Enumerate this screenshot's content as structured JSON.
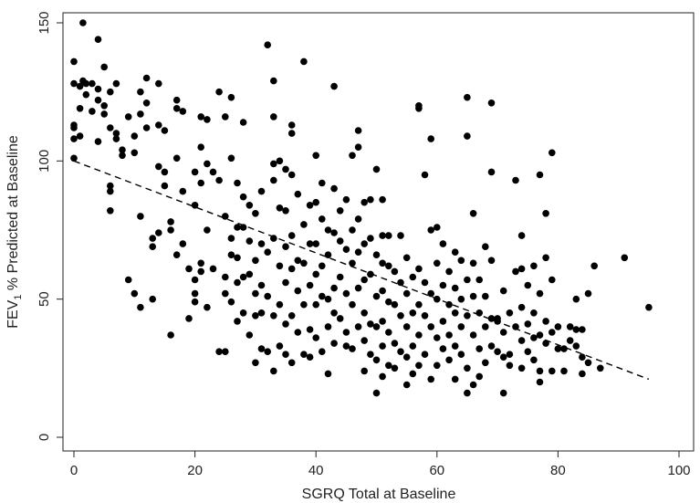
{
  "chart_data": {
    "type": "scatter",
    "xlabel": "SGRQ Total at Baseline",
    "ylabel_prefix": "FEV",
    "ylabel_subscript": "1",
    "ylabel_suffix": " % Predicted at Baseline",
    "xlim": [
      0,
      100
    ],
    "ylim": [
      0,
      150
    ],
    "xticks": [
      0,
      20,
      40,
      60,
      80,
      100
    ],
    "yticks": [
      0,
      50,
      100,
      150
    ],
    "grid": false,
    "legend": "none",
    "point_color": "#000000",
    "trendline": {
      "style": "dashed",
      "color": "#000000",
      "x": [
        0,
        95
      ],
      "y": [
        100,
        21
      ]
    },
    "points": [
      [
        0,
        136
      ],
      [
        0,
        128
      ],
      [
        0,
        113
      ],
      [
        0,
        112
      ],
      [
        0,
        108
      ],
      [
        0,
        101
      ],
      [
        1,
        119
      ],
      [
        1,
        109
      ],
      [
        1,
        127
      ],
      [
        1.5,
        129
      ],
      [
        1.5,
        150
      ],
      [
        2,
        128
      ],
      [
        2,
        124
      ],
      [
        3,
        128
      ],
      [
        3,
        118
      ],
      [
        4,
        144
      ],
      [
        4,
        126
      ],
      [
        4,
        122
      ],
      [
        4,
        107
      ],
      [
        5,
        134
      ],
      [
        5,
        120
      ],
      [
        5,
        117
      ],
      [
        6,
        125
      ],
      [
        6,
        112
      ],
      [
        6,
        91
      ],
      [
        6,
        89
      ],
      [
        6,
        82
      ],
      [
        7,
        128
      ],
      [
        7,
        110
      ],
      [
        7,
        108
      ],
      [
        8,
        104
      ],
      [
        8,
        102
      ],
      [
        9,
        116
      ],
      [
        9,
        57
      ],
      [
        10,
        109
      ],
      [
        10,
        103
      ],
      [
        10,
        52
      ],
      [
        11,
        125
      ],
      [
        11,
        117
      ],
      [
        11,
        80
      ],
      [
        11,
        47
      ],
      [
        12,
        130
      ],
      [
        12,
        121
      ],
      [
        12,
        112
      ],
      [
        13,
        72
      ],
      [
        13,
        69
      ],
      [
        13,
        50
      ],
      [
        14,
        128
      ],
      [
        14,
        113
      ],
      [
        14,
        98
      ],
      [
        14,
        74
      ],
      [
        15,
        111
      ],
      [
        15,
        96
      ],
      [
        15,
        91
      ],
      [
        16,
        78
      ],
      [
        16,
        75
      ],
      [
        16,
        37
      ],
      [
        17,
        122
      ],
      [
        17,
        119
      ],
      [
        17,
        101
      ],
      [
        17,
        66
      ],
      [
        18,
        118
      ],
      [
        18,
        89
      ],
      [
        18,
        70
      ],
      [
        19,
        61
      ],
      [
        19,
        43
      ],
      [
        20,
        96
      ],
      [
        20,
        84
      ],
      [
        20,
        57
      ],
      [
        20,
        52
      ],
      [
        20,
        49
      ],
      [
        21,
        116
      ],
      [
        21,
        105
      ],
      [
        21,
        92
      ],
      [
        21,
        63
      ],
      [
        21,
        60
      ],
      [
        22,
        115
      ],
      [
        22,
        99
      ],
      [
        22,
        75
      ],
      [
        22,
        47
      ],
      [
        23,
        96
      ],
      [
        23,
        61
      ],
      [
        24,
        125
      ],
      [
        24,
        93
      ],
      [
        24,
        31
      ],
      [
        25,
        116
      ],
      [
        25,
        80
      ],
      [
        25,
        58
      ],
      [
        25,
        52
      ],
      [
        25,
        31
      ],
      [
        26,
        123
      ],
      [
        26,
        101
      ],
      [
        26,
        72
      ],
      [
        26,
        66
      ],
      [
        26,
        49
      ],
      [
        27,
        92
      ],
      [
        27,
        76
      ],
      [
        27,
        65
      ],
      [
        27,
        56
      ],
      [
        27,
        42
      ],
      [
        28,
        114
      ],
      [
        28,
        87
      ],
      [
        28,
        76
      ],
      [
        28,
        58
      ],
      [
        28,
        45
      ],
      [
        29,
        84
      ],
      [
        29,
        71
      ],
      [
        29,
        59
      ],
      [
        29,
        37
      ],
      [
        30,
        81
      ],
      [
        30,
        64
      ],
      [
        30,
        52
      ],
      [
        30,
        44
      ],
      [
        30,
        27
      ],
      [
        31,
        89
      ],
      [
        31,
        70
      ],
      [
        31,
        55
      ],
      [
        31,
        45
      ],
      [
        31,
        32
      ],
      [
        32,
        142
      ],
      [
        32,
        67
      ],
      [
        32,
        51
      ],
      [
        32,
        31
      ],
      [
        33,
        129
      ],
      [
        33,
        116
      ],
      [
        33,
        99
      ],
      [
        33,
        93
      ],
      [
        33,
        72
      ],
      [
        33,
        44
      ],
      [
        33,
        24
      ],
      [
        34,
        100
      ],
      [
        34,
        83
      ],
      [
        34,
        62
      ],
      [
        34,
        48
      ],
      [
        34,
        33
      ],
      [
        35,
        97
      ],
      [
        35,
        82
      ],
      [
        35,
        69
      ],
      [
        35,
        56
      ],
      [
        35,
        41
      ],
      [
        35,
        30
      ],
      [
        36,
        113
      ],
      [
        36,
        110
      ],
      [
        36,
        95
      ],
      [
        36,
        73
      ],
      [
        36,
        61
      ],
      [
        36,
        44
      ],
      [
        36,
        27
      ],
      [
        37,
        88
      ],
      [
        37,
        64
      ],
      [
        37,
        53
      ],
      [
        37,
        38
      ],
      [
        38,
        136
      ],
      [
        38,
        77
      ],
      [
        38,
        63
      ],
      [
        38,
        48
      ],
      [
        38,
        30
      ],
      [
        39,
        84
      ],
      [
        39,
        70
      ],
      [
        39,
        55
      ],
      [
        39,
        39
      ],
      [
        39,
        29
      ],
      [
        40,
        102
      ],
      [
        40,
        85
      ],
      [
        40,
        70
      ],
      [
        40,
        59
      ],
      [
        40,
        48
      ],
      [
        40,
        36
      ],
      [
        41,
        92
      ],
      [
        41,
        79
      ],
      [
        41,
        62
      ],
      [
        41,
        51
      ],
      [
        41,
        31
      ],
      [
        42,
        75
      ],
      [
        42,
        66
      ],
      [
        42,
        50
      ],
      [
        42,
        40
      ],
      [
        42,
        23
      ],
      [
        43,
        127
      ],
      [
        43,
        90
      ],
      [
        43,
        74
      ],
      [
        43,
        54
      ],
      [
        43,
        45
      ],
      [
        43,
        34
      ],
      [
        44,
        82
      ],
      [
        44,
        71
      ],
      [
        44,
        58
      ],
      [
        44,
        43
      ],
      [
        45,
        86
      ],
      [
        45,
        68
      ],
      [
        45,
        52
      ],
      [
        45,
        38
      ],
      [
        45,
        33
      ],
      [
        46,
        102
      ],
      [
        46,
        75
      ],
      [
        46,
        63
      ],
      [
        46,
        48
      ],
      [
        46,
        32
      ],
      [
        47,
        111
      ],
      [
        47,
        105
      ],
      [
        47,
        79
      ],
      [
        47,
        67
      ],
      [
        47,
        54
      ],
      [
        47,
        40
      ],
      [
        48,
        85
      ],
      [
        48,
        70
      ],
      [
        48,
        57
      ],
      [
        48,
        45
      ],
      [
        48,
        35
      ],
      [
        48,
        24
      ],
      [
        49,
        86
      ],
      [
        49,
        72
      ],
      [
        49,
        59
      ],
      [
        49,
        41
      ],
      [
        49,
        30
      ],
      [
        50,
        97
      ],
      [
        50,
        66
      ],
      [
        50,
        51
      ],
      [
        50,
        40
      ],
      [
        50,
        28
      ],
      [
        50,
        16
      ],
      [
        51,
        86
      ],
      [
        51,
        73
      ],
      [
        51,
        63
      ],
      [
        51,
        53
      ],
      [
        51,
        42
      ],
      [
        51,
        33
      ],
      [
        51,
        22
      ],
      [
        52,
        73
      ],
      [
        52,
        62
      ],
      [
        52,
        49
      ],
      [
        52,
        38
      ],
      [
        52,
        26
      ],
      [
        53,
        60
      ],
      [
        53,
        48
      ],
      [
        53,
        34
      ],
      [
        53,
        25
      ],
      [
        54,
        73
      ],
      [
        54,
        56
      ],
      [
        54,
        44
      ],
      [
        54,
        31
      ],
      [
        55,
        65
      ],
      [
        55,
        52
      ],
      [
        55,
        40
      ],
      [
        55,
        29
      ],
      [
        55,
        19
      ],
      [
        56,
        58
      ],
      [
        56,
        45
      ],
      [
        56,
        33
      ],
      [
        56,
        23
      ],
      [
        57,
        120
      ],
      [
        57,
        119
      ],
      [
        57,
        61
      ],
      [
        57,
        48
      ],
      [
        57,
        37
      ],
      [
        57,
        26
      ],
      [
        58,
        95
      ],
      [
        58,
        56
      ],
      [
        58,
        44
      ],
      [
        58,
        30
      ],
      [
        59,
        108
      ],
      [
        59,
        75
      ],
      [
        59,
        52
      ],
      [
        59,
        40
      ],
      [
        59,
        21
      ],
      [
        60,
        76
      ],
      [
        60,
        63
      ],
      [
        60,
        50
      ],
      [
        60,
        36
      ],
      [
        60,
        26
      ],
      [
        61,
        70
      ],
      [
        61,
        55
      ],
      [
        61,
        42
      ],
      [
        61,
        32
      ],
      [
        62,
        60
      ],
      [
        62,
        48
      ],
      [
        62,
        37
      ],
      [
        62,
        28
      ],
      [
        63,
        67
      ],
      [
        63,
        54
      ],
      [
        63,
        45
      ],
      [
        63,
        33
      ],
      [
        63,
        21
      ],
      [
        64,
        64
      ],
      [
        64,
        50
      ],
      [
        64,
        40
      ],
      [
        64,
        30
      ],
      [
        65,
        123
      ],
      [
        65,
        109
      ],
      [
        65,
        57
      ],
      [
        65,
        44
      ],
      [
        65,
        25
      ],
      [
        65,
        16
      ],
      [
        66,
        81
      ],
      [
        66,
        63
      ],
      [
        66,
        51
      ],
      [
        66,
        37
      ],
      [
        66,
        19
      ],
      [
        67,
        57
      ],
      [
        67,
        45
      ],
      [
        67,
        32
      ],
      [
        67,
        22
      ],
      [
        68,
        69
      ],
      [
        68,
        51
      ],
      [
        68,
        40
      ],
      [
        68,
        27
      ],
      [
        69,
        121
      ],
      [
        69,
        96
      ],
      [
        69,
        64
      ],
      [
        69,
        43
      ],
      [
        69,
        33
      ],
      [
        70,
        43
      ],
      [
        70,
        42
      ],
      [
        70,
        31
      ],
      [
        71,
        53
      ],
      [
        71,
        38
      ],
      [
        71,
        29
      ],
      [
        71,
        16
      ],
      [
        72,
        45
      ],
      [
        72,
        30
      ],
      [
        72,
        26
      ],
      [
        73,
        93
      ],
      [
        73,
        60
      ],
      [
        73,
        40
      ],
      [
        74,
        73
      ],
      [
        74,
        61
      ],
      [
        74,
        47
      ],
      [
        74,
        35
      ],
      [
        74,
        25
      ],
      [
        75,
        55
      ],
      [
        75,
        41
      ],
      [
        75,
        31
      ],
      [
        76,
        62
      ],
      [
        76,
        45
      ],
      [
        76,
        36
      ],
      [
        76,
        28
      ],
      [
        77,
        95
      ],
      [
        77,
        52
      ],
      [
        77,
        37
      ],
      [
        77,
        24
      ],
      [
        77,
        20
      ],
      [
        78,
        81
      ],
      [
        78,
        65
      ],
      [
        78,
        42
      ],
      [
        78,
        34
      ],
      [
        79,
        57
      ],
      [
        79,
        38
      ],
      [
        79,
        24
      ],
      [
        79,
        103
      ],
      [
        80,
        40
      ],
      [
        80,
        32
      ],
      [
        81,
        32
      ],
      [
        81,
        24
      ],
      [
        82,
        35
      ],
      [
        82,
        40
      ],
      [
        83,
        39
      ],
      [
        83,
        33
      ],
      [
        83,
        50
      ],
      [
        84,
        39
      ],
      [
        84,
        29
      ],
      [
        84,
        23
      ],
      [
        85,
        52
      ],
      [
        85,
        27
      ],
      [
        86,
        62
      ],
      [
        87,
        25
      ],
      [
        91,
        65
      ],
      [
        95,
        47
      ]
    ]
  }
}
